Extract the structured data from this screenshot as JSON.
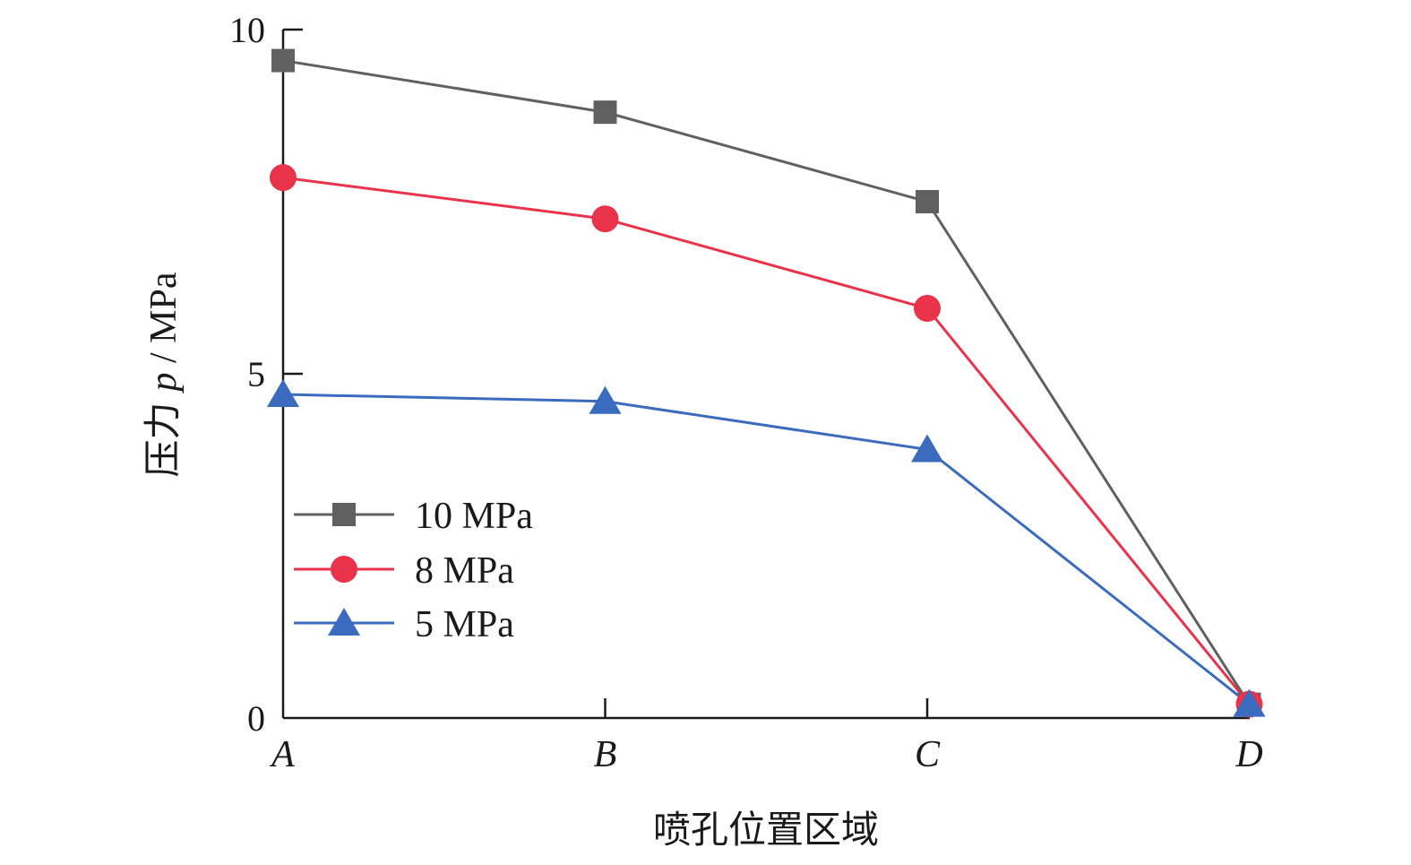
{
  "chart_data": {
    "type": "line",
    "title": "",
    "xlabel": "喷孔位置区域",
    "ylabel": "压力 p / MPa",
    "ylabel_parts": {
      "zh": "压力",
      "symbol": "p",
      "unit": " / MPa"
    },
    "categories": [
      "A",
      "B",
      "C",
      "D"
    ],
    "ylim": [
      0,
      10
    ],
    "yticks": [
      "0",
      "5",
      "10"
    ],
    "legend_position": "lower-left",
    "grid": false,
    "series": [
      {
        "name": "10 MPa",
        "values": [
          9.55,
          8.8,
          7.5,
          0.2
        ],
        "color": "#606060",
        "marker": "square"
      },
      {
        "name": "8 MPa",
        "values": [
          7.85,
          7.25,
          5.95,
          0.2
        ],
        "color": "#e8334a",
        "marker": "circle"
      },
      {
        "name": "5 MPa",
        "values": [
          4.7,
          4.6,
          3.9,
          0.2
        ],
        "color": "#3a6bbf",
        "marker": "triangle"
      }
    ]
  }
}
